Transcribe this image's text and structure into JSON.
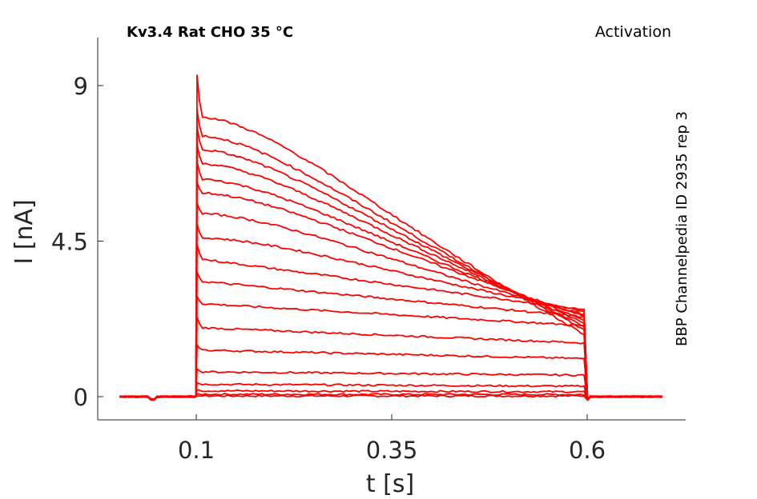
{
  "chart_data": {
    "type": "line",
    "title_left": "Kv3.4  Rat  CHO  35 °C",
    "title_right": "Activation",
    "side_label": "BBP Channelpedia ID 2935 rep 3",
    "xlabel": "t [s]",
    "ylabel": "I [nA]",
    "xlim": [
      0.0,
      0.75
    ],
    "ylim": [
      -0.7,
      10.9
    ],
    "xticks": [
      0.1,
      0.35,
      0.6
    ],
    "xtick_labels": [
      "0.1",
      "0.35",
      "0.6"
    ],
    "yticks": [
      0,
      4.5,
      9
    ],
    "ytick_labels": [
      "0",
      "4.5",
      "9"
    ],
    "grid": false,
    "line_color": "#ff0000",
    "pulse": {
      "start": 0.1,
      "end": 0.6,
      "trace_start": 0.002,
      "trace_end": 0.7
    },
    "series": [
      {
        "peak": 0.02,
        "plateau_start": 0.02,
        "end": 0.02
      },
      {
        "peak": 0.08,
        "plateau_start": 0.07,
        "end": 0.06
      },
      {
        "peak": 0.2,
        "plateau_start": 0.17,
        "end": 0.14
      },
      {
        "peak": 0.4,
        "plateau_start": 0.36,
        "end": 0.3
      },
      {
        "peak": 0.8,
        "plateau_start": 0.72,
        "end": 0.62
      },
      {
        "peak": 1.5,
        "plateau_start": 1.35,
        "end": 1.1
      },
      {
        "peak": 2.3,
        "plateau_start": 2.0,
        "end": 1.55
      },
      {
        "peak": 2.9,
        "plateau_start": 2.7,
        "end": 2.05
      },
      {
        "peak": 3.6,
        "plateau_start": 3.35,
        "end": 2.3
      },
      {
        "peak": 4.4,
        "plateau_start": 4.0,
        "end": 2.5
      },
      {
        "peak": 5.0,
        "plateau_start": 4.6,
        "end": 2.45
      },
      {
        "peak": 5.6,
        "plateau_start": 5.3,
        "end": 2.35
      },
      {
        "peak": 6.2,
        "plateau_start": 5.9,
        "end": 2.3
      },
      {
        "peak": 6.8,
        "plateau_start": 6.3,
        "end": 2.2
      },
      {
        "peak": 7.3,
        "plateau_start": 6.75,
        "end": 2.1
      },
      {
        "peak": 7.8,
        "plateau_start": 7.15,
        "end": 2.0
      },
      {
        "peak": 8.3,
        "plateau_start": 7.55,
        "end": 1.9
      },
      {
        "peak": 9.3,
        "plateau_start": 8.1,
        "end": 1.75
      }
    ]
  }
}
